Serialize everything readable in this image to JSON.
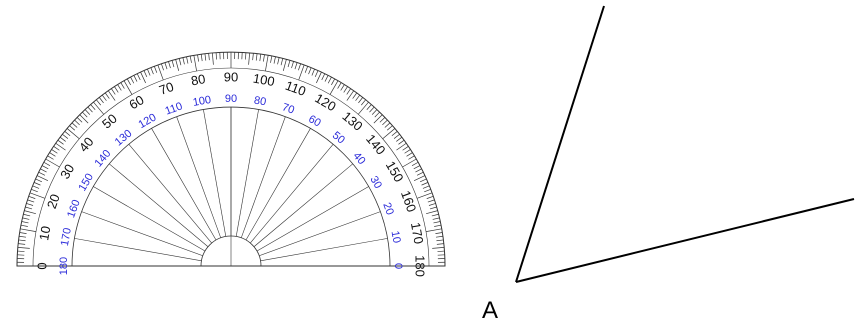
{
  "protractor": {
    "outer_scale_labels": [
      "0",
      "10",
      "20",
      "30",
      "40",
      "50",
      "60",
      "70",
      "80",
      "90",
      "100",
      "110",
      "120",
      "130",
      "140",
      "150",
      "160",
      "170",
      "180"
    ],
    "inner_scale_labels": [
      "180",
      "170",
      "160",
      "150",
      "140",
      "130",
      "120",
      "110",
      "100",
      "90",
      "80",
      "70",
      "60",
      "50",
      "40",
      "30",
      "20",
      "10",
      "0"
    ],
    "outer_label_color": "#111111",
    "inner_label_color": "#2b2bd9",
    "line_color": "#333333"
  },
  "angle": {
    "vertex_label": "A",
    "line_color": "#000000"
  }
}
